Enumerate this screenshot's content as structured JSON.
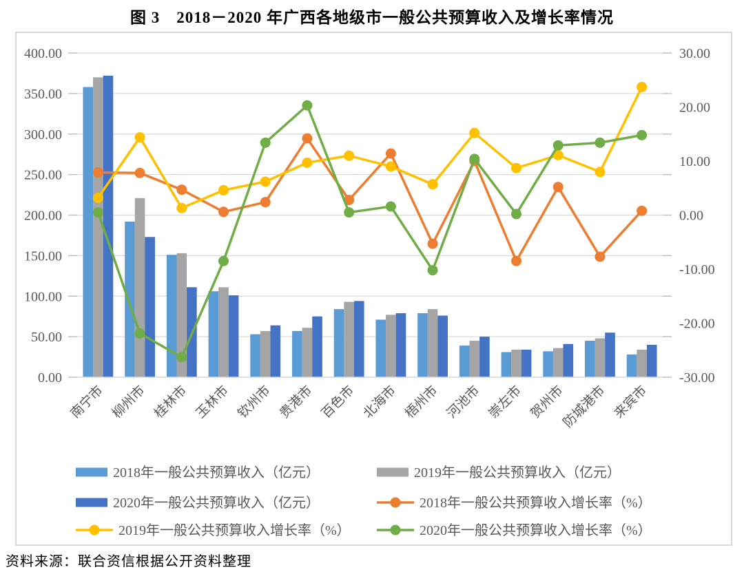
{
  "page": {
    "title": "图 3　2018－2020 年广西各地级市一般公共预算收入及增长率情况",
    "source": "资料来源：联合资信根据公开资料整理"
  },
  "colors": {
    "bar_2018": "#5B9BD5",
    "bar_2019": "#A5A5A5",
    "bar_2020": "#4472C4",
    "line_2018": "#ED7D31",
    "line_2019": "#FFC000",
    "line_2020": "#70AD47",
    "grid": "#D9D9D9",
    "tick": "#BFBFBF",
    "axis_text": "#595959",
    "box_border": "#D9D9D9"
  },
  "chart_data": {
    "type": "combo_bar_line",
    "title": "图 3　2018－2020 年广西各地级市一般公共预算收入及增长率情况",
    "grid": "horizontal",
    "legend_position": "bottom",
    "categories": [
      "南宁市",
      "柳州市",
      "桂林市",
      "玉林市",
      "钦州市",
      "贵港市",
      "百色市",
      "北海市",
      "梧州市",
      "河池市",
      "崇左市",
      "贺州市",
      "防城港市",
      "来宾市"
    ],
    "bar_series": [
      {
        "name": "2018年一般公共预算收入（亿元）",
        "color_key": "bar_2018",
        "values": [
          358,
          192,
          151,
          106,
          53,
          57,
          84,
          71,
          79,
          39,
          31,
          32,
          45,
          28
        ]
      },
      {
        "name": "2019年一般公共预算收入（亿元）",
        "color_key": "bar_2019",
        "values": [
          370,
          221,
          153,
          111,
          57,
          61,
          93,
          77,
          84,
          45,
          34,
          36,
          48,
          34
        ]
      },
      {
        "name": "2020年一般公共预算收入（亿元）",
        "color_key": "bar_2020",
        "values": [
          372,
          173,
          111,
          101,
          64,
          75,
          94,
          79,
          76,
          50,
          34,
          41,
          55,
          40
        ]
      }
    ],
    "line_series": [
      {
        "name": "2018年一般公共预算收入增长率（%）",
        "color_key": "line_2018",
        "values": [
          7.9,
          7.8,
          4.7,
          0.6,
          2.4,
          14.2,
          2.8,
          11.4,
          -5.3,
          10.0,
          -8.5,
          5.2,
          -7.7,
          0.8
        ]
      },
      {
        "name": "2019年一般公共预算收入增长率（%）",
        "color_key": "line_2019",
        "values": [
          3.2,
          14.4,
          1.3,
          4.6,
          6.2,
          9.7,
          11.0,
          9.0,
          5.7,
          15.2,
          8.7,
          11.1,
          8.0,
          23.7
        ]
      },
      {
        "name": "2020年一般公共预算收入增长率（%）",
        "color_key": "line_2020",
        "values": [
          0.5,
          -21.9,
          -26.3,
          -8.5,
          13.4,
          20.3,
          0.5,
          1.6,
          -10.2,
          10.4,
          0.2,
          12.9,
          13.4,
          14.8
        ]
      }
    ],
    "left_axis": {
      "min": 0,
      "max": 400,
      "step": 50,
      "tick_labels_top_to_bottom": [
        "400.00",
        "350.00",
        "300.00",
        "250.00",
        "200.00",
        "150.00",
        "100.00",
        "50.00",
        "0.00"
      ]
    },
    "right_axis": {
      "min": -30,
      "max": 30,
      "step": 10,
      "tick_labels_top_to_bottom": [
        "30.00",
        "20.00",
        "10.00",
        "0.00",
        "-10.00",
        "-20.00",
        "-30.00"
      ]
    },
    "legend_rows": [
      [
        {
          "series": "bar",
          "index": 0
        },
        {
          "series": "bar",
          "index": 1
        }
      ],
      [
        {
          "series": "bar",
          "index": 2
        },
        {
          "series": "line",
          "index": 0
        }
      ],
      [
        {
          "series": "line",
          "index": 1
        },
        {
          "series": "line",
          "index": 2
        }
      ]
    ]
  }
}
